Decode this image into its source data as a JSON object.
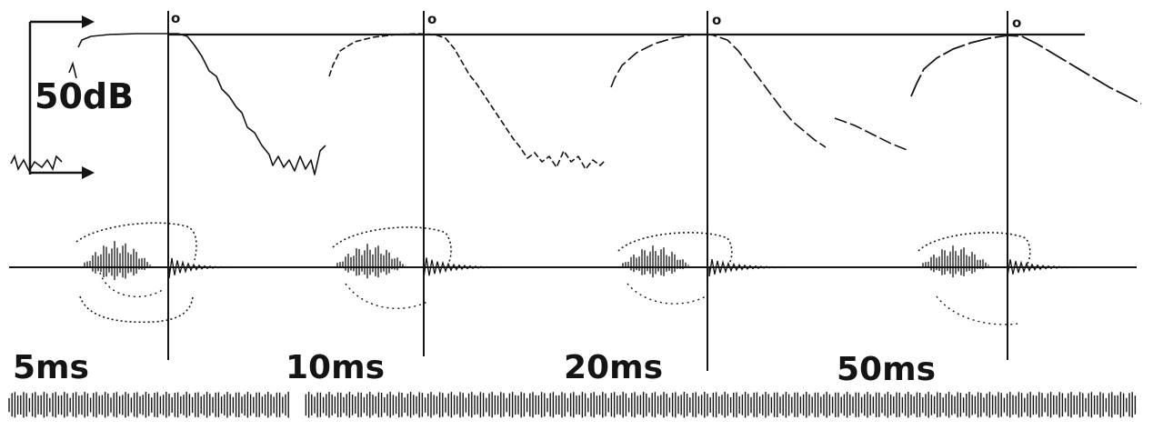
{
  "figure": {
    "scale_label": "50dB",
    "panels": [
      {
        "duration_label": "5ms",
        "zero_label": "o"
      },
      {
        "duration_label": "10ms",
        "zero_label": "o"
      },
      {
        "duration_label": "20ms",
        "zero_label": "o"
      },
      {
        "duration_label": "50ms",
        "zero_label": "o"
      }
    ]
  },
  "colors": {
    "ink": "#141414",
    "paper": "#ffffff"
  }
}
